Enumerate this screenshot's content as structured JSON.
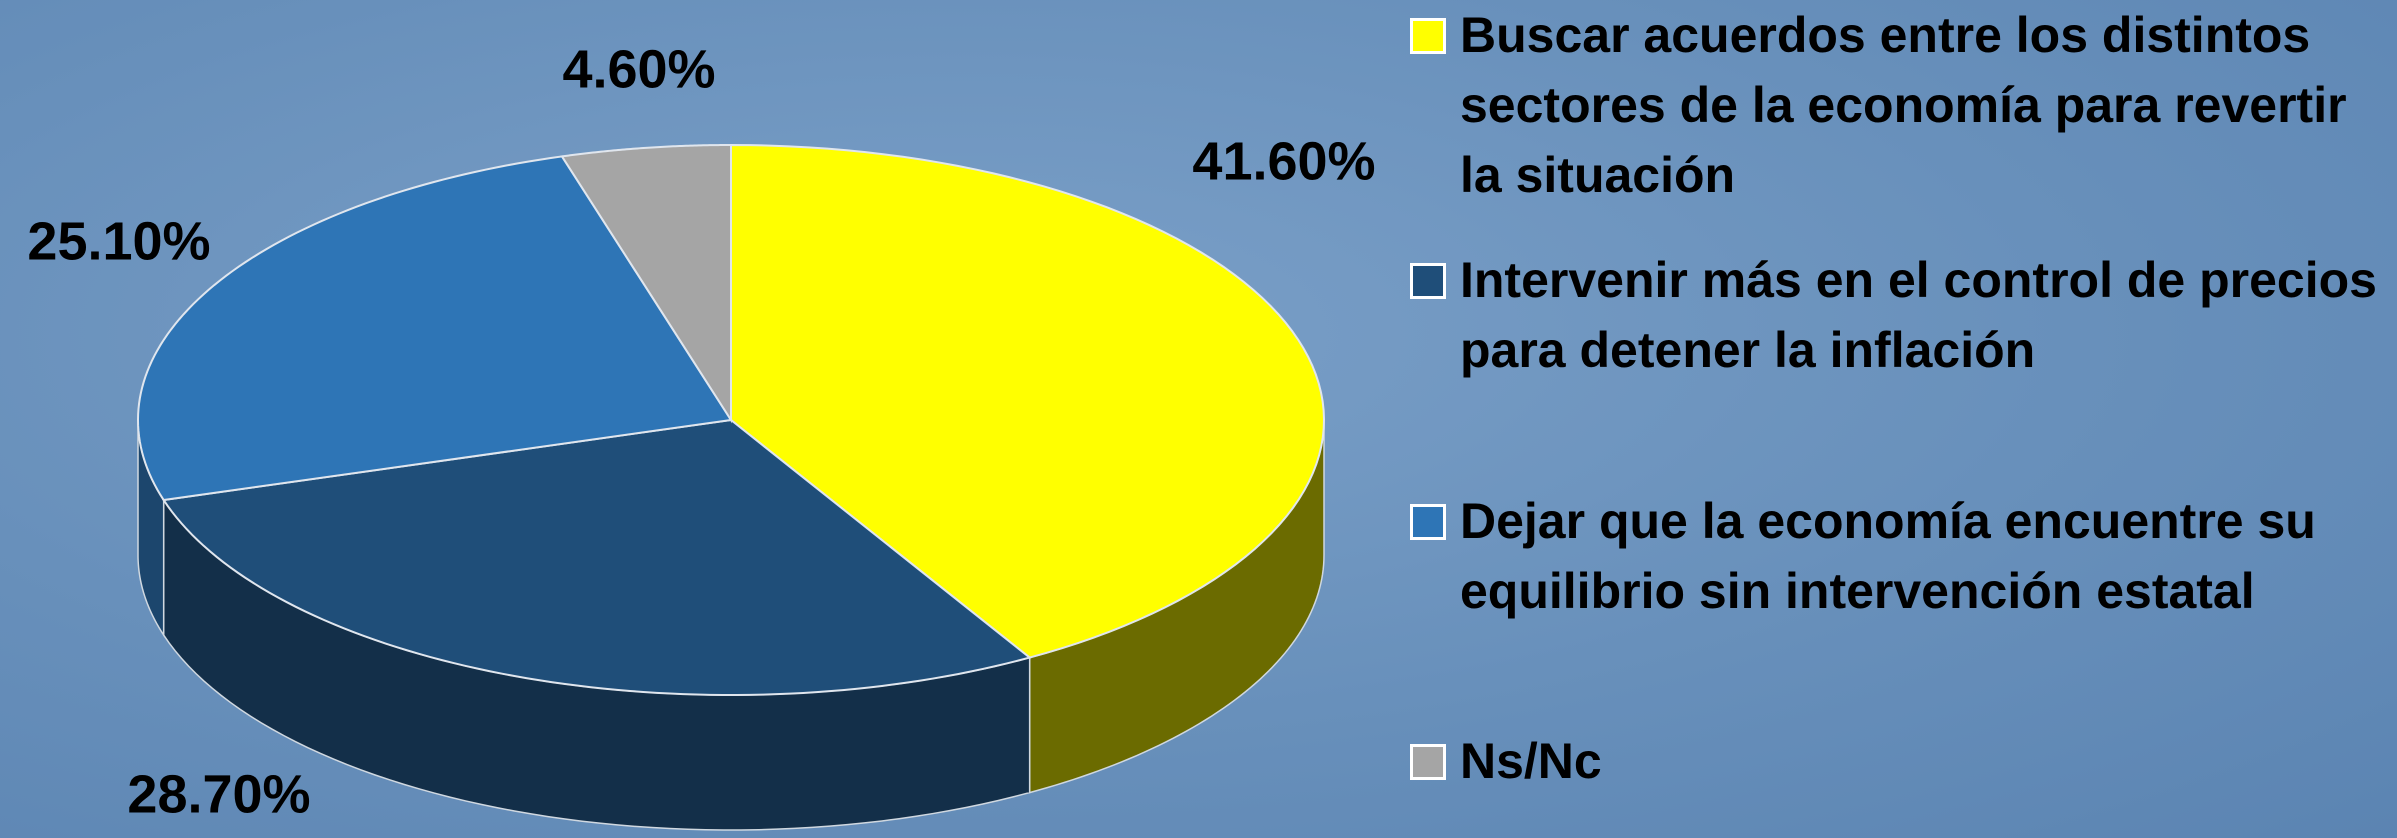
{
  "chart_data": {
    "type": "pie",
    "categories": [
      "Buscar acuerdos entre los distintos sectores de la economía para revertir la situación",
      "Intervenir más en el control de precios para detener la inflación",
      "Dejar que la economía encuentre su equilibrio sin intervención estatal",
      "Ns/Nc"
    ],
    "values": [
      41.6,
      28.7,
      25.1,
      4.6
    ],
    "value_labels": [
      "41.60%",
      "28.70%",
      "25.10%",
      "4.60%"
    ],
    "colors": [
      "#ffff00",
      "#1f4e79",
      "#2e75b6",
      "#a5a5a5"
    ],
    "legend": "right"
  }
}
